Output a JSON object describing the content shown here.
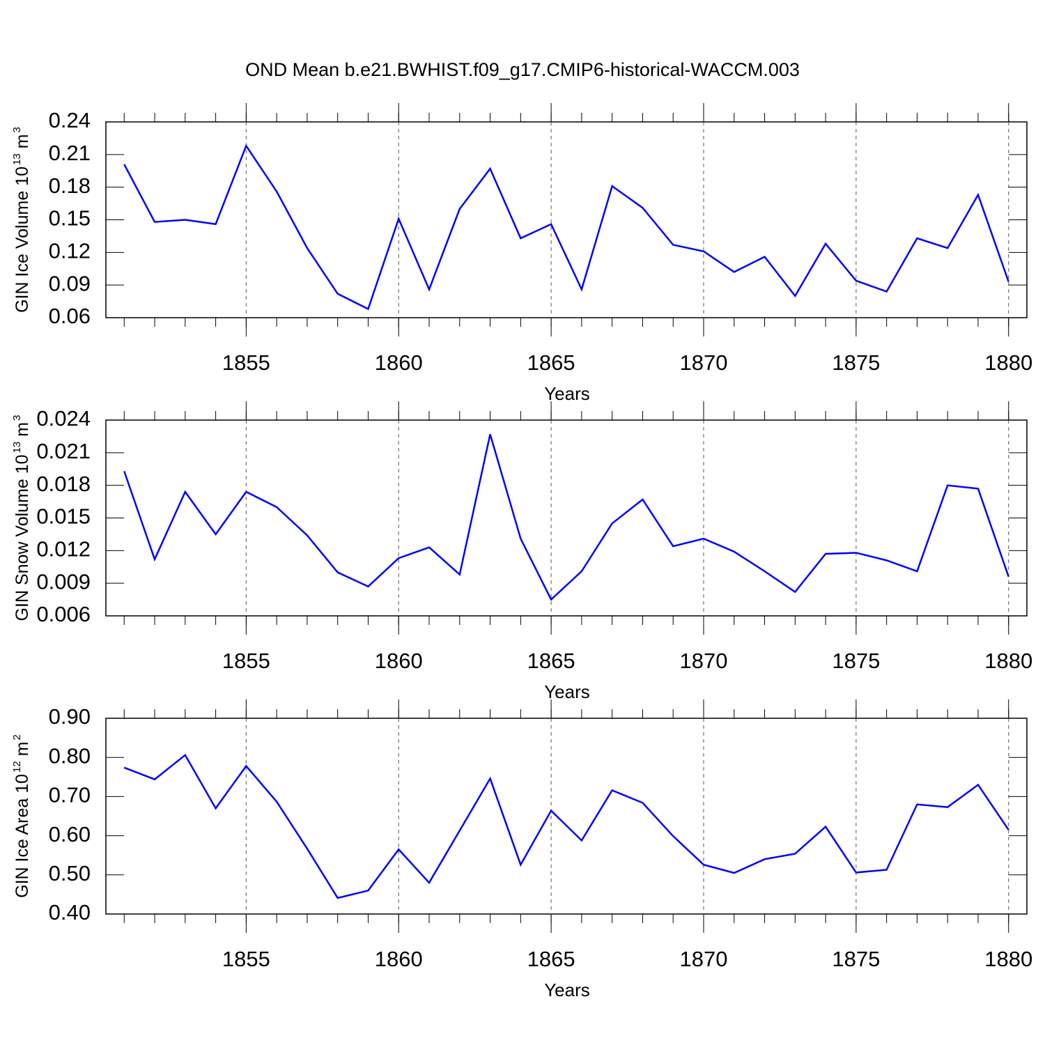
{
  "chart_data": [
    {
      "type": "line",
      "title": "OND Mean b.e21.BWHIST.f09_g17.CMIP6-historical-WACCM.003",
      "ylabel": [
        "GIN Ice Volume 10",
        "13",
        "m",
        "3"
      ],
      "xlabel": "Years",
      "x": [
        1851,
        1852,
        1853,
        1854,
        1855,
        1856,
        1857,
        1858,
        1859,
        1860,
        1861,
        1862,
        1863,
        1864,
        1865,
        1866,
        1867,
        1868,
        1869,
        1870,
        1871,
        1872,
        1873,
        1874,
        1875,
        1876,
        1877,
        1878,
        1879,
        1880
      ],
      "values": [
        0.201,
        0.148,
        0.15,
        0.146,
        0.218,
        0.176,
        0.124,
        0.082,
        0.068,
        0.151,
        0.086,
        0.16,
        0.197,
        0.133,
        0.146,
        0.086,
        0.181,
        0.161,
        0.127,
        0.121,
        0.102,
        0.116,
        0.08,
        0.128,
        0.094,
        0.084,
        0.133,
        0.124,
        0.173,
        0.093
      ],
      "color": "#0000ff",
      "xlim": [
        1850.4,
        1880.6
      ],
      "xticks": [
        1855,
        1860,
        1865,
        1870,
        1875,
        1880
      ],
      "ylim": [
        0.06,
        0.24
      ],
      "yticks": [
        0.06,
        0.09,
        0.12,
        0.15,
        0.18,
        0.21,
        0.24
      ],
      "grid": true
    },
    {
      "type": "line",
      "ylabel": [
        "GIN Snow Volume 10",
        "13",
        "m",
        "3"
      ],
      "xlabel": "Years",
      "x": [
        1851,
        1852,
        1853,
        1854,
        1855,
        1856,
        1857,
        1858,
        1859,
        1860,
        1861,
        1862,
        1863,
        1864,
        1865,
        1866,
        1867,
        1868,
        1869,
        1870,
        1871,
        1872,
        1873,
        1874,
        1875,
        1876,
        1877,
        1878,
        1879,
        1880
      ],
      "values": [
        0.0193,
        0.0112,
        0.0174,
        0.0135,
        0.0174,
        0.016,
        0.0134,
        0.01,
        0.0087,
        0.0113,
        0.0123,
        0.0098,
        0.0227,
        0.0131,
        0.0075,
        0.0101,
        0.0145,
        0.0167,
        0.0124,
        0.0131,
        0.0119,
        0.0101,
        0.0082,
        0.0117,
        0.0118,
        0.0111,
        0.0101,
        0.018,
        0.0177,
        0.0096
      ],
      "color": "#0000ff",
      "xlim": [
        1850.4,
        1880.6
      ],
      "xticks": [
        1855,
        1860,
        1865,
        1870,
        1875,
        1880
      ],
      "ylim": [
        0.006,
        0.024
      ],
      "yticks": [
        0.006,
        0.009,
        0.012,
        0.015,
        0.018,
        0.021,
        0.024
      ],
      "grid": true
    },
    {
      "type": "line",
      "ylabel": [
        "GIN Ice Area 10",
        "12",
        "m",
        "2"
      ],
      "xlabel": "Years",
      "x": [
        1851,
        1852,
        1853,
        1854,
        1855,
        1856,
        1857,
        1858,
        1859,
        1860,
        1861,
        1862,
        1863,
        1864,
        1865,
        1866,
        1867,
        1868,
        1869,
        1870,
        1871,
        1872,
        1873,
        1874,
        1875,
        1876,
        1877,
        1878,
        1879,
        1880
      ],
      "values": [
        0.774,
        0.744,
        0.806,
        0.67,
        0.778,
        0.687,
        0.567,
        0.441,
        0.46,
        0.565,
        0.48,
        0.613,
        0.746,
        0.526,
        0.664,
        0.588,
        0.716,
        0.684,
        0.599,
        0.526,
        0.505,
        0.54,
        0.554,
        0.623,
        0.506,
        0.513,
        0.68,
        0.673,
        0.73,
        0.615
      ],
      "color": "#0000ff",
      "xlim": [
        1850.4,
        1880.6
      ],
      "xticks": [
        1855,
        1860,
        1865,
        1870,
        1875,
        1880
      ],
      "ylim": [
        0.4,
        0.9
      ],
      "yticks": [
        {
          "value": 0.4,
          "label": "0.40"
        },
        {
          "value": 0.5,
          "label": "0.50"
        },
        {
          "value": 0.6,
          "label": "0.60"
        },
        {
          "value": 0.7,
          "label": "0.70"
        },
        {
          "value": 0.8,
          "label": "0.80"
        },
        {
          "value": 0.9,
          "label": "0.90"
        }
      ],
      "grid": true
    }
  ]
}
